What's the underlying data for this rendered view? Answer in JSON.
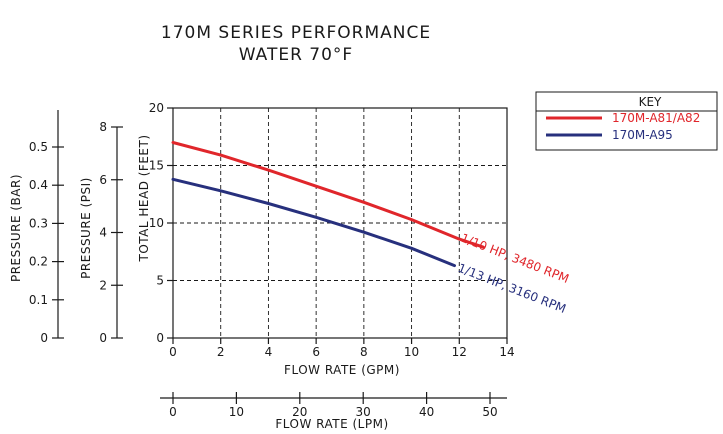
{
  "chart_data": {
    "type": "line",
    "title": "170M SERIES PERFORMANCE",
    "subtitle": "WATER 70°F",
    "xlabel": "FLOW RATE (GPM)",
    "ylabel": "TOTAL HEAD (FEET)",
    "xlim": [
      0,
      14
    ],
    "ylim": [
      0,
      20
    ],
    "x_ticks": [
      "0",
      "2",
      "4",
      "6",
      "8",
      "10",
      "12",
      "14"
    ],
    "y_ticks": [
      "0",
      "5",
      "10",
      "15",
      "20"
    ],
    "grid": true,
    "legend_title": "KEY",
    "legend_position": "top-right",
    "series": [
      {
        "name": "170M-A81/A82",
        "color": "#e0262b",
        "annotation": "1/10 HP, 3480 RPM",
        "x": [
          0,
          2,
          4,
          6,
          8,
          10,
          12,
          13
        ],
        "y": [
          17,
          15.9,
          14.6,
          13.2,
          11.8,
          10.3,
          8.6,
          7.9
        ]
      },
      {
        "name": "170M-A95",
        "color": "#27307d",
        "annotation": "1/13 HP, 3160 RPM",
        "x": [
          0,
          2,
          4,
          6,
          8,
          10,
          11.8
        ],
        "y": [
          13.8,
          12.8,
          11.7,
          10.5,
          9.2,
          7.8,
          6.3
        ]
      }
    ],
    "secondary_axes": {
      "pressure_psi": {
        "label": "PRESSURE (PSI)",
        "ticks": [
          "0",
          "2",
          "4",
          "6",
          "8"
        ]
      },
      "pressure_bar": {
        "label": "PRESSURE (BAR)",
        "ticks": [
          "0",
          "0.1",
          "0.2",
          "0.3",
          "0.4",
          "0.5"
        ]
      },
      "flow_lpm": {
        "label": "FLOW RATE (LPM)",
        "ticks": [
          "0",
          "10",
          "20",
          "30",
          "40",
          "50"
        ]
      }
    }
  }
}
